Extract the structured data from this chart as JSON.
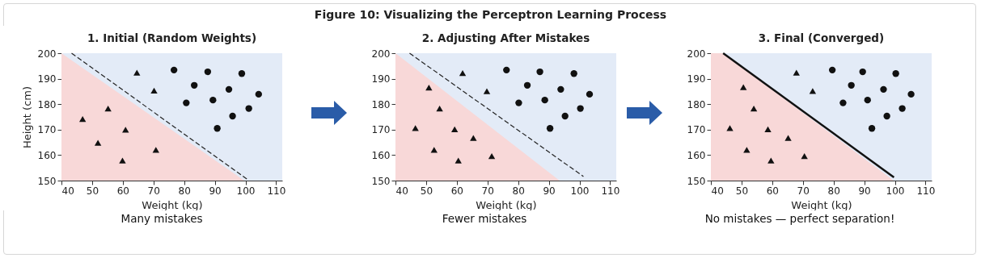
{
  "chart_data": [
    {
      "type": "other",
      "title": "Figure 10: Visualizing the Perceptron Learning Process"
    },
    {
      "type": "scatter",
      "title": "1. Initial (Random Weights)",
      "xlabel": "Weight (kg)",
      "ylabel": "Height (cm)",
      "xlim": [
        40,
        112
      ],
      "ylim": [
        150,
        200
      ],
      "xticks": [
        40,
        50,
        60,
        70,
        80,
        90,
        100,
        110
      ],
      "yticks": [
        150,
        160,
        170,
        180,
        190,
        200
      ],
      "annotations": [
        "Many mistakes"
      ],
      "bands": [
        {
          "axis": "x",
          "from": 40,
          "to": 112,
          "color": "#e3ebf7"
        }
      ],
      "series": [
        {
          "type": "area",
          "color": "#f8d8d8",
          "x": [
            40,
            99.6
          ],
          "values": [
            200,
            150
          ]
        },
        {
          "type": "line",
          "color": "#222222",
          "line_style": "dashed",
          "x": [
            43.3,
            100.7
          ],
          "values": [
            200,
            150.4
          ]
        },
        {
          "type": "scatter",
          "marker": "triangle",
          "color": "#111111",
          "x": [
            64.6,
            70.2,
            55.2,
            46.9,
            60.9,
            51.9,
            59.9,
            70.8
          ],
          "values": [
            192.4,
            185.3,
            178.3,
            174.2,
            170,
            164.8,
            157.9,
            162.1
          ]
        },
        {
          "type": "scatter",
          "marker": "circle",
          "color": "#111111",
          "x": [
            76.7,
            83.3,
            87.7,
            80.7,
            89.4,
            94.6,
            98.8,
            104.3,
            101.1,
            95.8,
            90.8
          ],
          "values": [
            193.4,
            187.4,
            192.7,
            180.5,
            181.6,
            185.8,
            192,
            183.9,
            178.3,
            175.3,
            170.5
          ]
        }
      ]
    },
    {
      "type": "scatter",
      "title": "2. Adjusting After Mistakes",
      "xlabel": "Weight (kg)",
      "xlim": [
        40,
        112
      ],
      "ylim": [
        150,
        200
      ],
      "xticks": [
        40,
        50,
        60,
        70,
        80,
        90,
        100,
        110
      ],
      "yticks": [
        150,
        160,
        170,
        180,
        190,
        200
      ],
      "annotations": [
        "Fewer mistakes"
      ],
      "bands": [
        {
          "axis": "x",
          "from": 40,
          "to": 112,
          "color": "#e3ebf7"
        }
      ],
      "series": [
        {
          "type": "area",
          "color": "#f8d8d8",
          "x": [
            40,
            93.5
          ],
          "values": [
            200,
            150
          ]
        },
        {
          "type": "line",
          "color": "#222222",
          "line_style": "dashed",
          "x": [
            44.6,
            101.3
          ],
          "values": [
            200,
            151.6
          ]
        },
        {
          "type": "scatter",
          "marker": "triangle",
          "color": "#111111",
          "x": [
            61.9,
            50.9,
            54.4,
            46.5,
            59.3,
            65.4,
            52.6,
            60.5,
            71.4,
            69.8
          ],
          "values": [
            192.2,
            186.5,
            178.3,
            170.6,
            170.1,
            166.7,
            162.1,
            157.9,
            159.6,
            185.1
          ]
        },
        {
          "type": "scatter",
          "marker": "circle",
          "color": "#111111",
          "x": [
            76.2,
            83,
            87.1,
            80.2,
            88.7,
            93.9,
            98.2,
            103.3,
            100.3,
            95.3,
            90.4
          ],
          "values": [
            193.4,
            187.4,
            192.7,
            180.5,
            181.6,
            185.8,
            192,
            183.9,
            178.3,
            175.3,
            170.5
          ]
        }
      ]
    },
    {
      "type": "scatter",
      "title": "3. Final (Converged)",
      "xlabel": "Weight (kg)",
      "xlim": [
        40,
        112
      ],
      "ylim": [
        150,
        200
      ],
      "xticks": [
        40,
        50,
        60,
        70,
        80,
        90,
        100,
        110
      ],
      "yticks": [
        150,
        160,
        170,
        180,
        190,
        200
      ],
      "annotations": [
        "No mistakes — perfect separation!"
      ],
      "bands": [
        {
          "axis": "x",
          "from": 40,
          "to": 112,
          "color": "#e3ebf7"
        }
      ],
      "series": [
        {
          "type": "area",
          "color": "#f8d8d8",
          "x": [
            40,
            44,
            99.6
          ],
          "values": [
            200,
            200,
            150
          ]
        },
        {
          "type": "line",
          "color": "#111111",
          "line_style": "solid",
          "x": [
            44,
            99.7
          ],
          "values": [
            200,
            151.3
          ]
        },
        {
          "type": "scatter",
          "marker": "triangle",
          "color": "#111111",
          "x": [
            67.9,
            73.2,
            50.6,
            54,
            46.2,
            58.6,
            65.2,
            51.7,
            59.6,
            70.5
          ],
          "values": [
            192.4,
            185.2,
            186.7,
            178.3,
            170.6,
            170.1,
            166.7,
            162.1,
            157.9,
            159.6
          ]
        },
        {
          "type": "scatter",
          "marker": "circle",
          "color": "#111111",
          "x": [
            79.6,
            85.8,
            89.5,
            83.1,
            91.1,
            96.3,
            100.3,
            105.3,
            102.4,
            97.4,
            92.5
          ],
          "values": [
            193.4,
            187.4,
            192.7,
            180.5,
            181.6,
            185.8,
            192,
            183.9,
            178.3,
            175.3,
            170.5
          ]
        }
      ]
    }
  ]
}
